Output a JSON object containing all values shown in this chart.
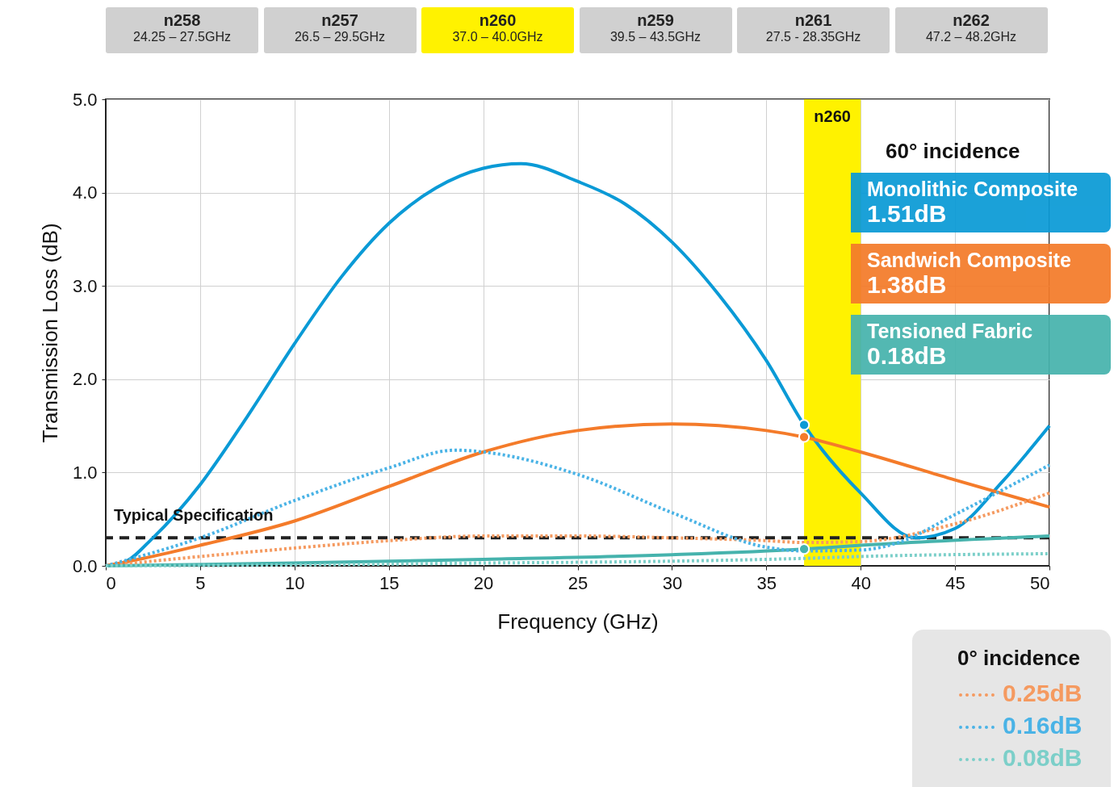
{
  "chart_data": {
    "type": "line",
    "xlabel": "Frequency (GHz)",
    "ylabel": "Transmission Loss (dB)",
    "xlim": [
      0,
      50
    ],
    "ylim": [
      0,
      5
    ],
    "xticks": [
      0,
      5,
      10,
      15,
      20,
      25,
      30,
      35,
      40,
      45,
      50
    ],
    "yticks": [
      {
        "value": 0,
        "label": "0.0"
      },
      {
        "value": 1,
        "label": "1.0"
      },
      {
        "value": 2,
        "label": "2.0"
      },
      {
        "value": 3,
        "label": "3.0"
      },
      {
        "value": 4,
        "label": "4.0"
      },
      {
        "value": 5,
        "label": "5.0"
      }
    ],
    "grid": true,
    "series": [
      {
        "name": "Monolithic Composite",
        "color": "#0a9ad6",
        "line_style": "solid",
        "x": [
          0,
          1,
          2.5,
          5,
          7.5,
          10,
          12.5,
          15,
          17.5,
          20,
          22,
          25,
          27.5,
          30,
          32.5,
          35,
          37,
          40,
          42.9,
          45,
          47.5,
          50
        ],
        "values": [
          0,
          0.04,
          0.3,
          0.87,
          1.6,
          2.38,
          3.1,
          3.67,
          4.05,
          4.26,
          4.31,
          4.12,
          3.88,
          3.47,
          2.9,
          2.2,
          1.51,
          0.78,
          0.3,
          0.4,
          0.9,
          1.5
        ]
      },
      {
        "name": "Sandwich Composite",
        "color": "#f47b2a",
        "line_style": "solid",
        "x": [
          0,
          2,
          5,
          10,
          15,
          20,
          25,
          30,
          35,
          37,
          40,
          45,
          50
        ],
        "values": [
          0,
          0.08,
          0.22,
          0.48,
          0.85,
          1.22,
          1.45,
          1.52,
          1.45,
          1.38,
          1.22,
          0.92,
          0.63
        ]
      },
      {
        "name": "Tensioned Fabric",
        "color": "#46b3ad",
        "line_style": "solid",
        "x": [
          0,
          10,
          20,
          30,
          37,
          40,
          50
        ],
        "values": [
          0,
          0.03,
          0.07,
          0.12,
          0.18,
          0.22,
          0.32
        ]
      },
      {
        "color": "#f59a60",
        "line_style": "dotted",
        "x": [
          0,
          5,
          10,
          15,
          20,
          25,
          30,
          35,
          37,
          40,
          45,
          50
        ],
        "values": [
          0,
          0.1,
          0.19,
          0.27,
          0.32,
          0.32,
          0.3,
          0.27,
          0.25,
          0.26,
          0.45,
          0.78
        ]
      },
      {
        "color": "#4ab3e6",
        "line_style": "dotted",
        "x": [
          0,
          5,
          10,
          15,
          18.5,
          20,
          25,
          30,
          35,
          37,
          40,
          42,
          45,
          50
        ],
        "values": [
          0,
          0.3,
          0.7,
          1.05,
          1.24,
          1.22,
          0.98,
          0.57,
          0.2,
          0.16,
          0.17,
          0.25,
          0.55,
          1.08
        ]
      },
      {
        "color": "#7ccfc9",
        "line_style": "dotted",
        "x": [
          0,
          10,
          20,
          30,
          37,
          40,
          50
        ],
        "values": [
          0,
          0.01,
          0.03,
          0.05,
          0.08,
          0.1,
          0.13
        ]
      },
      {
        "type": "scatter",
        "color": "#0a9ad6",
        "marker": "circle",
        "x": [
          37
        ],
        "values": [
          1.51
        ]
      },
      {
        "type": "scatter",
        "color": "#f47b2a",
        "marker": "circle",
        "x": [
          37
        ],
        "values": [
          1.38
        ]
      },
      {
        "type": "scatter",
        "color": "#46b3ad",
        "marker": "circle",
        "x": [
          37
        ],
        "values": [
          0.18
        ]
      }
    ],
    "ref_lines": [
      {
        "axis": "y",
        "value": 0.3,
        "label": "Typical Specification",
        "color": "#222222",
        "line_style": "dashed"
      }
    ],
    "bands": [
      {
        "axis": "x",
        "from": 37,
        "to": 40,
        "label": "n260",
        "color": "#fff200"
      }
    ],
    "annotations": [
      "60° incidence",
      "0° incidence",
      "n258",
      "24.25 – 27.5GHz",
      "n257",
      "26.5 – 29.5GHz",
      "n260",
      "37.0 – 40.0GHz",
      "n259",
      "39.5 – 43.5GHz",
      "n261",
      "27.5 - 28.35GHz",
      "n262",
      "47.2 – 48.2GHz",
      "1.51dB",
      "1.38dB",
      "0.18dB",
      "0.25dB",
      "0.16dB",
      "0.08dB"
    ]
  }
}
